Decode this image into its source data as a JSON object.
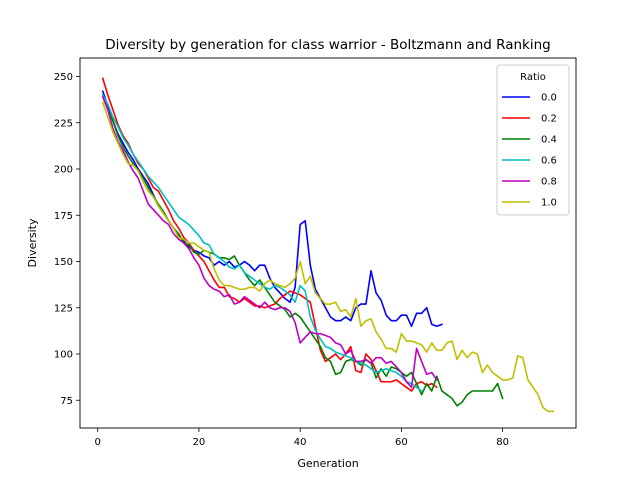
{
  "chart_data": {
    "type": "line",
    "title": "Diversity by generation for class warrior - Boltzmann and Ranking",
    "xlabel": "Generation",
    "ylabel": "Diversity",
    "xlim": [
      -3.5,
      94.5
    ],
    "ylim": [
      60,
      260
    ],
    "x_ticks": [
      0,
      20,
      40,
      60,
      80
    ],
    "y_ticks": [
      75,
      100,
      125,
      150,
      175,
      200,
      225,
      250
    ],
    "grid": false,
    "legend_title": "Ratio",
    "legend_position": "top-right",
    "series": [
      {
        "name": "0.0",
        "color": "#0000ff",
        "x": [
          1,
          2,
          3,
          4,
          5,
          6,
          7,
          8,
          9,
          10,
          11,
          12,
          13,
          14,
          15,
          16,
          17,
          18,
          19,
          20,
          21,
          22,
          23,
          24,
          25,
          26,
          27,
          28,
          29,
          30,
          31,
          32,
          33,
          34,
          35,
          36,
          37,
          38,
          39,
          40,
          41,
          42,
          43,
          44,
          45,
          46,
          47,
          48,
          49,
          50,
          51,
          52,
          53,
          54,
          55,
          56,
          57,
          58,
          59,
          60,
          61,
          62,
          63,
          64,
          65,
          66,
          67,
          68
        ],
        "values": [
          242,
          234,
          226,
          219,
          214,
          209,
          205,
          200,
          196,
          192,
          186,
          180,
          176,
          172,
          168,
          164,
          161,
          158,
          156,
          155,
          153,
          152,
          148,
          150,
          148,
          150,
          147,
          148,
          150,
          148,
          145,
          148,
          148,
          141,
          136,
          133,
          130,
          128,
          136,
          170,
          172,
          148,
          135,
          130,
          125,
          120,
          118,
          118,
          120,
          118,
          125,
          127,
          127,
          145,
          133,
          129,
          121,
          118,
          118,
          121,
          121,
          115,
          122,
          122,
          125,
          116,
          115,
          116
        ]
      },
      {
        "name": "0.2",
        "color": "#ff0000",
        "x": [
          1,
          2,
          3,
          4,
          5,
          6,
          7,
          8,
          9,
          10,
          11,
          12,
          13,
          14,
          15,
          16,
          17,
          18,
          19,
          20,
          21,
          22,
          23,
          24,
          25,
          26,
          27,
          28,
          29,
          30,
          31,
          32,
          33,
          34,
          35,
          36,
          37,
          38,
          39,
          40,
          41,
          42,
          43,
          44,
          45,
          46,
          47,
          48,
          49,
          50,
          51,
          52,
          53,
          54,
          55,
          56,
          57,
          58,
          59,
          60,
          61,
          62,
          63,
          64,
          65,
          66,
          67
        ],
        "values": [
          249,
          240,
          232,
          224,
          218,
          214,
          208,
          203,
          200,
          195,
          190,
          188,
          183,
          178,
          172,
          168,
          163,
          160,
          156,
          153,
          150,
          145,
          140,
          136,
          136,
          131,
          130,
          128,
          130,
          128,
          126,
          126,
          125,
          126,
          127,
          130,
          132,
          134,
          133,
          132,
          130,
          128,
          115,
          102,
          96,
          98,
          100,
          97,
          100,
          104,
          91,
          90,
          100,
          97,
          91,
          85,
          85,
          85,
          86,
          84,
          82,
          80,
          84,
          85,
          83,
          84,
          82
        ]
      },
      {
        "name": "0.4",
        "color": "#008000",
        "x": [
          1,
          2,
          3,
          4,
          5,
          6,
          7,
          8,
          9,
          10,
          11,
          12,
          13,
          14,
          15,
          16,
          17,
          18,
          19,
          20,
          21,
          22,
          23,
          24,
          25,
          26,
          27,
          28,
          29,
          30,
          31,
          32,
          33,
          34,
          35,
          36,
          37,
          38,
          39,
          40,
          41,
          42,
          43,
          44,
          45,
          46,
          47,
          48,
          49,
          50,
          51,
          52,
          53,
          54,
          55,
          56,
          57,
          58,
          59,
          60,
          61,
          62,
          63,
          64,
          65,
          66,
          67,
          68,
          69,
          70,
          71,
          72,
          73,
          74,
          75,
          76,
          77,
          78,
          79,
          80
        ],
        "values": [
          240,
          232,
          226,
          218,
          212,
          207,
          203,
          199,
          195,
          190,
          185,
          181,
          177,
          172,
          168,
          165,
          160,
          159,
          155,
          154,
          156,
          155,
          154,
          152,
          152,
          151,
          153,
          148,
          144,
          140,
          137,
          140,
          136,
          132,
          128,
          126,
          124,
          120,
          122,
          120,
          116,
          112,
          108,
          104,
          98,
          96,
          89,
          90,
          96,
          97,
          96,
          94,
          97,
          95,
          87,
          92,
          88,
          93,
          92,
          90,
          88,
          90,
          84,
          78,
          84,
          80,
          88,
          80,
          78,
          76,
          72,
          74,
          78,
          80,
          80,
          80,
          80,
          80,
          84,
          76
        ]
      },
      {
        "name": "0.6",
        "color": "#00bfbf",
        "x": [
          1,
          2,
          3,
          4,
          5,
          6,
          7,
          8,
          9,
          10,
          11,
          12,
          13,
          14,
          15,
          16,
          17,
          18,
          19,
          20,
          21,
          22,
          23,
          24,
          25,
          26,
          27,
          28,
          29,
          30,
          31,
          32,
          33,
          34,
          35,
          36,
          37,
          38,
          39,
          40,
          41,
          42,
          43,
          44,
          45,
          46,
          47,
          48,
          49,
          50,
          51,
          52,
          53,
          54,
          55,
          56,
          57,
          58,
          59,
          60,
          61,
          62,
          63,
          64
        ],
        "values": [
          240,
          235,
          228,
          223,
          217,
          213,
          208,
          204,
          200,
          196,
          193,
          190,
          186,
          182,
          178,
          174,
          172,
          170,
          167,
          164,
          160,
          159,
          154,
          152,
          150,
          147,
          146,
          148,
          144,
          142,
          140,
          138,
          136,
          135,
          137,
          136,
          134,
          132,
          128,
          137,
          134,
          120,
          113,
          108,
          104,
          103,
          101,
          100,
          99,
          98,
          96,
          95,
          94,
          92,
          90,
          91,
          92,
          91,
          90,
          88,
          85,
          84,
          82,
          80
        ]
      },
      {
        "name": "0.8",
        "color": "#bf00bf",
        "x": [
          1,
          2,
          3,
          4,
          5,
          6,
          7,
          8,
          9,
          10,
          11,
          12,
          13,
          14,
          15,
          16,
          17,
          18,
          19,
          20,
          21,
          22,
          23,
          24,
          25,
          26,
          27,
          28,
          29,
          30,
          31,
          32,
          33,
          34,
          35,
          36,
          37,
          38,
          39,
          40,
          41,
          42,
          43,
          44,
          45,
          46,
          47,
          48,
          49,
          50,
          51,
          52,
          53,
          54,
          55,
          56,
          57,
          58,
          59,
          60,
          61,
          62,
          63,
          64,
          65,
          66,
          67
        ],
        "values": [
          239,
          232,
          222,
          215,
          210,
          204,
          199,
          195,
          188,
          181,
          178,
          175,
          172,
          170,
          165,
          162,
          160,
          157,
          152,
          148,
          141,
          137,
          135,
          134,
          131,
          132,
          127,
          128,
          131,
          129,
          127,
          125,
          128,
          125,
          124,
          125,
          125,
          123,
          117,
          106,
          109,
          112,
          111,
          111,
          110,
          109,
          106,
          105,
          100,
          102,
          96,
          96,
          97,
          95,
          98,
          98,
          95,
          96,
          93,
          90,
          85,
          82,
          103,
          96,
          89,
          90,
          86
        ]
      },
      {
        "name": "1.0",
        "color": "#bfbf00",
        "x": [
          1,
          2,
          3,
          4,
          5,
          6,
          7,
          8,
          9,
          10,
          11,
          12,
          13,
          14,
          15,
          16,
          17,
          18,
          19,
          20,
          21,
          22,
          23,
          24,
          25,
          26,
          27,
          28,
          29,
          30,
          31,
          32,
          33,
          34,
          35,
          36,
          37,
          38,
          39,
          40,
          41,
          42,
          43,
          44,
          45,
          46,
          47,
          48,
          49,
          50,
          51,
          52,
          53,
          54,
          55,
          56,
          57,
          58,
          59,
          60,
          61,
          62,
          63,
          64,
          65,
          66,
          67,
          68,
          69,
          70,
          71,
          72,
          73,
          74,
          75,
          76,
          77,
          78,
          79,
          80,
          81,
          82,
          83,
          84,
          85,
          86,
          87,
          88,
          89,
          90
        ],
        "values": [
          236,
          228,
          220,
          214,
          208,
          203,
          202,
          199,
          193,
          188,
          185,
          180,
          176,
          172,
          168,
          163,
          162,
          160,
          160,
          158,
          156,
          155,
          146,
          140,
          137,
          137,
          136,
          135,
          135,
          136,
          136,
          134,
          138,
          140,
          138,
          137,
          136,
          138,
          141,
          150,
          138,
          142,
          133,
          130,
          127,
          127,
          128,
          123,
          124,
          120,
          130,
          115,
          118,
          119,
          112,
          108,
          103,
          103,
          101,
          111,
          107,
          107,
          106,
          105,
          101,
          106,
          102,
          102,
          106,
          107,
          97,
          102,
          98,
          101,
          100,
          90,
          94,
          90,
          88,
          86,
          86,
          87,
          99,
          98,
          86,
          82,
          78,
          71,
          69,
          69
        ]
      }
    ]
  }
}
